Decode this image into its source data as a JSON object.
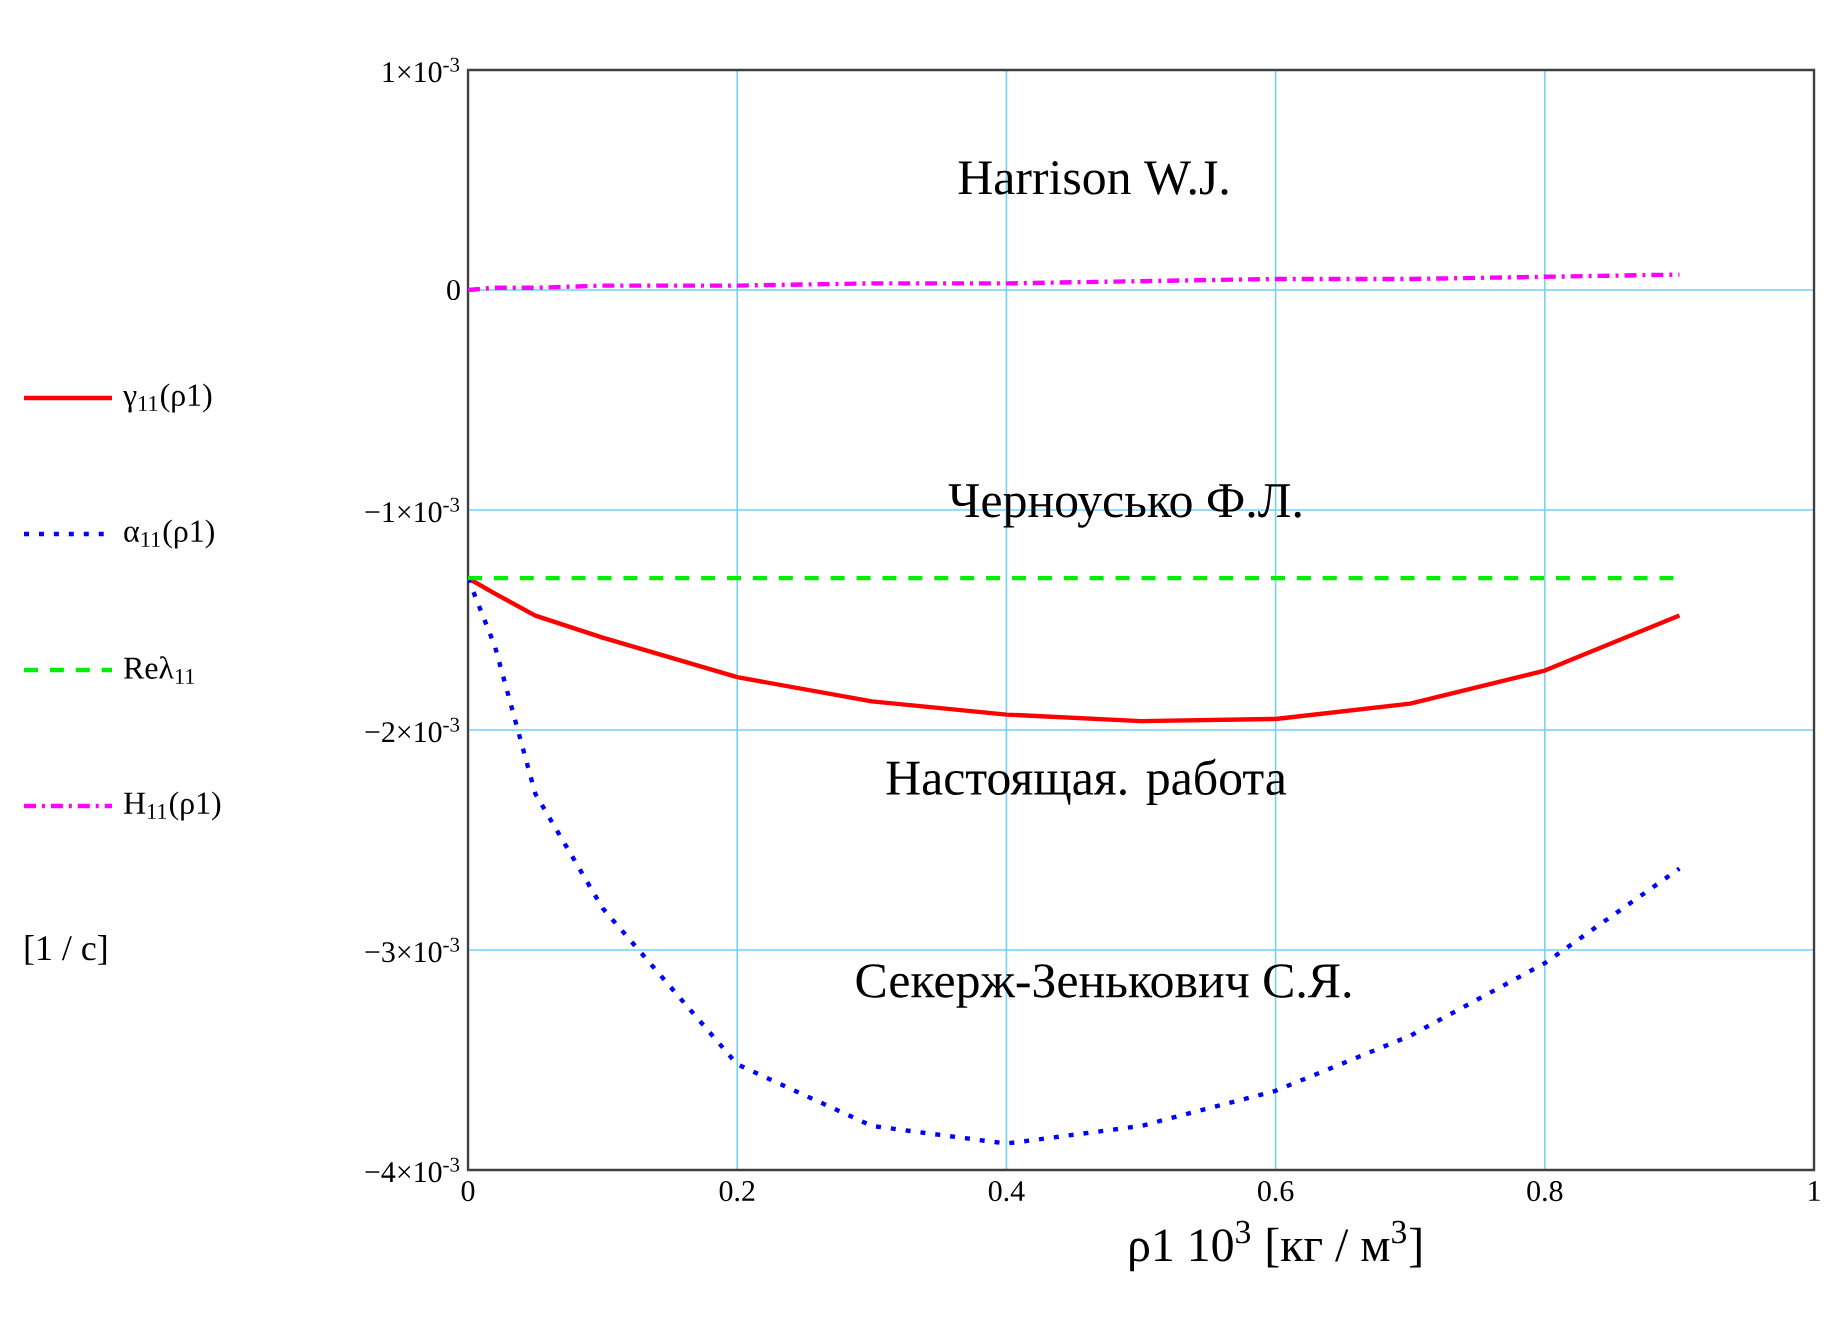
{
  "chart_data": {
    "type": "line",
    "xlabel": "ρ1 10$^{3}$ [кг / м$^{3}$]",
    "x": [
      0,
      0.02,
      0.05,
      0.1,
      0.2,
      0.3,
      0.4,
      0.5,
      0.6,
      0.7,
      0.8,
      0.9
    ],
    "series": [
      {
        "name": "γ$_{11}$(ρ1)",
        "color": "#ff0000",
        "line_style": "solid",
        "values": [
          -0.00131,
          -0.00138,
          -0.00148,
          -0.00158,
          -0.00176,
          -0.00187,
          -0.00193,
          -0.00196,
          -0.00195,
          -0.00188,
          -0.00173,
          -0.00148
        ]
      },
      {
        "name": "α$_{11}$(ρ1)",
        "color": "#0000ff",
        "line_style": "dotted",
        "values": [
          -0.00131,
          -0.00162,
          -0.00229,
          -0.00281,
          -0.00352,
          -0.0038,
          -0.00388,
          -0.0038,
          -0.00364,
          -0.00339,
          -0.00306,
          -0.00263
        ]
      },
      {
        "name": "Reλ$_{11}$",
        "color": "#00ee00",
        "line_style": "dashed",
        "values": [
          -0.00131,
          -0.00131,
          -0.00131,
          -0.00131,
          -0.00131,
          -0.00131,
          -0.00131,
          -0.00131,
          -0.00131,
          -0.00131,
          -0.00131,
          -0.00131
        ]
      },
      {
        "name": "H$_{11}$(ρ1)",
        "color": "#ff00ff",
        "line_style": "dashdot",
        "values": [
          0,
          1e-05,
          1e-05,
          2e-05,
          2e-05,
          3e-05,
          3e-05,
          4e-05,
          5e-05,
          5e-05,
          6e-05,
          7e-05
        ]
      }
    ],
    "xlim": [
      0,
      1
    ],
    "ylim": [
      -0.004,
      0.001
    ],
    "xticks": [
      0,
      0.2,
      0.4,
      0.6,
      0.8,
      1
    ],
    "yticks": [
      {
        "value": -0.004,
        "label": "−4×10$^{-3}$"
      },
      {
        "value": -0.003,
        "label": "−3×10$^{-3}$"
      },
      {
        "value": -0.002,
        "label": "−2×10$^{-3}$"
      },
      {
        "value": -0.001,
        "label": "−1×10$^{-3}$"
      },
      0,
      {
        "value": 0.001,
        "label": "1×10$^{-3}$"
      }
    ],
    "grid": true,
    "legend": "left",
    "marker": "none",
    "annotations": [
      "Harrison W.J.",
      "Черноусько Ф.Л.",
      "Настоящая. работа",
      "Секерж-Зенькович С.Я.",
      "[1 / c]"
    ]
  }
}
